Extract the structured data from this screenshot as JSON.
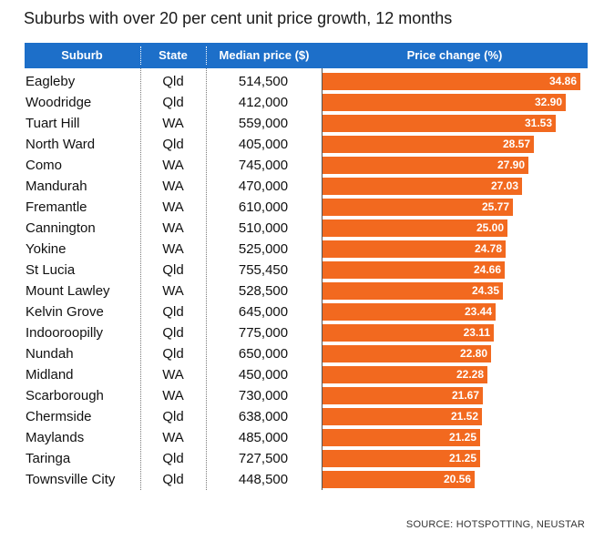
{
  "title": "Suburbs with over 20 per cent unit price growth, 12 months",
  "source": "SOURCE: HOTSPOTTING, NEUSTAR",
  "colors": {
    "header": "#1d6fc9",
    "bar": "#f2691f"
  },
  "chart_data": {
    "type": "table",
    "title": "Suburbs with over 20 per cent unit price growth, 12 months",
    "columns": [
      "Suburb",
      "State",
      "Median price ($)",
      "Price change (%)"
    ],
    "bar_column": "Price change (%)",
    "bar_scale_max": 34.86,
    "rows": [
      {
        "suburb": "Eagleby",
        "state": "Qld",
        "price": "514,500",
        "change": 34.86,
        "change_label": "34.86"
      },
      {
        "suburb": "Woodridge",
        "state": "Qld",
        "price": "412,000",
        "change": 32.9,
        "change_label": "32.90"
      },
      {
        "suburb": "Tuart Hill",
        "state": "WA",
        "price": "559,000",
        "change": 31.53,
        "change_label": "31.53"
      },
      {
        "suburb": "North Ward",
        "state": "Qld",
        "price": "405,000",
        "change": 28.57,
        "change_label": "28.57"
      },
      {
        "suburb": "Como",
        "state": "WA",
        "price": "745,000",
        "change": 27.9,
        "change_label": "27.90"
      },
      {
        "suburb": "Mandurah",
        "state": "WA",
        "price": "470,000",
        "change": 27.03,
        "change_label": "27.03"
      },
      {
        "suburb": "Fremantle",
        "state": "WA",
        "price": "610,000",
        "change": 25.77,
        "change_label": "25.77"
      },
      {
        "suburb": "Cannington",
        "state": "WA",
        "price": "510,000",
        "change": 25.0,
        "change_label": "25.00"
      },
      {
        "suburb": "Yokine",
        "state": "WA",
        "price": "525,000",
        "change": 24.78,
        "change_label": "24.78"
      },
      {
        "suburb": "St Lucia",
        "state": "Qld",
        "price": "755,450",
        "change": 24.66,
        "change_label": "24.66"
      },
      {
        "suburb": "Mount Lawley",
        "state": "WA",
        "price": "528,500",
        "change": 24.35,
        "change_label": "24.35"
      },
      {
        "suburb": "Kelvin Grove",
        "state": "Qld",
        "price": "645,000",
        "change": 23.44,
        "change_label": "23.44"
      },
      {
        "suburb": "Indooroopilly",
        "state": "Qld",
        "price": "775,000",
        "change": 23.11,
        "change_label": "23.11"
      },
      {
        "suburb": "Nundah",
        "state": "Qld",
        "price": "650,000",
        "change": 22.8,
        "change_label": "22.80"
      },
      {
        "suburb": "Midland",
        "state": "WA",
        "price": "450,000",
        "change": 22.28,
        "change_label": "22.28"
      },
      {
        "suburb": "Scarborough",
        "state": "WA",
        "price": "730,000",
        "change": 21.67,
        "change_label": "21.67"
      },
      {
        "suburb": "Chermside",
        "state": "Qld",
        "price": "638,000",
        "change": 21.52,
        "change_label": "21.52"
      },
      {
        "suburb": "Maylands",
        "state": "WA",
        "price": "485,000",
        "change": 21.25,
        "change_label": "21.25"
      },
      {
        "suburb": "Taringa",
        "state": "Qld",
        "price": "727,500",
        "change": 21.25,
        "change_label": "21.25"
      },
      {
        "suburb": "Townsville City",
        "state": "Qld",
        "price": "448,500",
        "change": 20.56,
        "change_label": "20.56"
      }
    ]
  }
}
